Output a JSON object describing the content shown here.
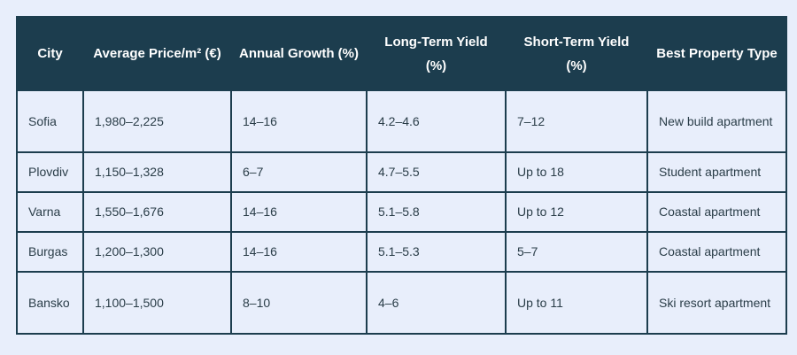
{
  "table": {
    "headers": [
      "City",
      "Average Price/m² (€)",
      "Annual Growth (%)",
      "Long-Term Yield (%)",
      "Short-Term Yield (%)",
      "Best Property Type"
    ],
    "rows": [
      [
        "Sofia",
        "1,980–2,225",
        "14–16",
        "4.2–4.6",
        "7–12",
        "New build apartment"
      ],
      [
        "Plovdiv",
        "1,150–1,328",
        "6–7",
        "4.7–5.5",
        "Up to 18",
        "Student apartment"
      ],
      [
        "Varna",
        "1,550–1,676",
        "14–16",
        "5.1–5.8",
        "Up to 12",
        "Coastal apartment"
      ],
      [
        "Burgas",
        "1,200–1,300",
        "14–16",
        "5.1–5.3",
        "5–7",
        "Coastal apartment"
      ],
      [
        "Bansko",
        "1,100–1,500",
        "8–10",
        "4–6",
        "Up to 11",
        "Ski resort apartment"
      ]
    ]
  },
  "colors": {
    "header_bg": "#1c3d4e",
    "header_text": "#ffffff",
    "page_bg": "#e8eefb",
    "cell_text": "#2a3d48",
    "border": "#1c3d4e"
  }
}
